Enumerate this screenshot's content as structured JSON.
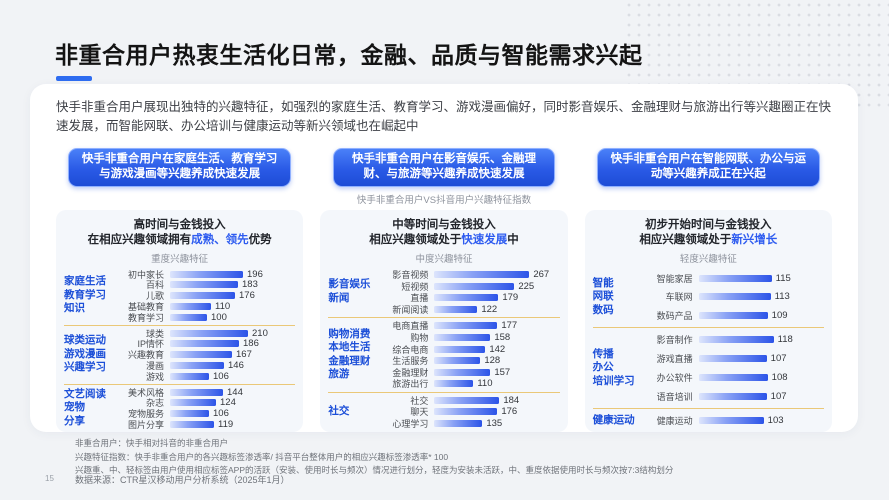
{
  "slide": {
    "title": "非重合用户热衷生活化日常，金融、品质与智能需求兴起",
    "description": "快手非重合用户展现出独特的兴趣特征，如强烈的家庭生活、教育学习、游戏漫画偏好，同时影音娱乐、金融理财与旅游出行等兴趣圈正在快速发展，而智能网联、办公培训与健康运动等新兴领域也在崛起中",
    "vs_caption": "快手非重合用户VS抖音用户兴趣特征指数",
    "page_number": "15",
    "source": "数据来源：CTR星汉移动用户分析系统（2025年1月）",
    "footnotes": [
      "非重合用户：快手相对抖音的非重合用户",
      "兴趣特征指数：快手非重合用户的各兴趣标签渗透率/ 抖音平台整体用户的相应兴趣标签渗透率* 100",
      "兴趣重、中、轻标签由用户使用相应标签APP的活跃（安装、使用时长与频次）情况进行划分，轻度为安装未活跃，中、重度依据使用时长与频次按7:3结构划分"
    ],
    "accent_color": "#2E6CF0",
    "bar_color": "#2C54E8",
    "highlight_color": "#2E5CF0",
    "divider_color": "#EAC878"
  },
  "columns": [
    {
      "header": "快手非重合用户在家庭生活、教育学习与游戏漫画等兴趣养成快速发展"
    },
    {
      "header": "快手非重合用户在影音娱乐、金融理财、与旅游等兴趣养成快速发展"
    },
    {
      "header": "快手非重合用户在智能网联、办公与运动等兴趣养成正在兴起"
    }
  ],
  "chart_data": [
    {
      "type": "bar",
      "orientation": "horizontal",
      "takeaway_title": "高时间与金钱投入",
      "takeaway_prefix": "在相应兴趣领域拥有",
      "takeaway_highlight": "成熟、领先",
      "takeaway_suffix": "优势",
      "title": "重度兴趣特征",
      "max_value": 210,
      "xlim": [
        0,
        220
      ],
      "grid": false,
      "legend": false,
      "groups": [
        {
          "label_lines": [
            "家庭生活",
            "教育学习",
            "知识"
          ],
          "categories": [
            "初中家长",
            "百科",
            "儿歌",
            "基础教育",
            "教育学习"
          ],
          "values": [
            196,
            183,
            176,
            110,
            100
          ]
        },
        {
          "label_lines": [
            "球类运动",
            "游戏漫画",
            "兴趣学习"
          ],
          "categories": [
            "球类",
            "IP情怀",
            "兴趣教育",
            "漫画",
            "游戏"
          ],
          "values": [
            210,
            186,
            167,
            146,
            106
          ]
        },
        {
          "label_lines": [
            "文艺阅读",
            "宠物",
            "分享"
          ],
          "categories": [
            "美术风格",
            "杂志",
            "宠物服务",
            "图片分享"
          ],
          "values": [
            144,
            124,
            106,
            119
          ]
        }
      ]
    },
    {
      "type": "bar",
      "orientation": "horizontal",
      "takeaway_title": "中等时间与金钱投入",
      "takeaway_prefix": "相应兴趣领域处于",
      "takeaway_highlight": "快速发展",
      "takeaway_suffix": "中",
      "title": "中度兴趣特征",
      "max_value": 267,
      "xlim": [
        0,
        280
      ],
      "grid": false,
      "legend": false,
      "groups": [
        {
          "label_lines": [
            "影音娱乐",
            "新闻"
          ],
          "categories": [
            "影音视频",
            "短视频",
            "直播",
            "新闻阅读"
          ],
          "values": [
            267,
            225,
            179,
            122
          ]
        },
        {
          "label_lines": [
            "购物消费",
            "本地生活",
            "金融理财",
            "旅游"
          ],
          "categories": [
            "电商直播",
            "购物",
            "综合电商",
            "生活服务",
            "金融理财",
            "旅游出行"
          ],
          "values": [
            177,
            158,
            142,
            128,
            157,
            110
          ]
        },
        {
          "label_lines": [
            "社交"
          ],
          "categories": [
            "社交",
            "聊天",
            "心理学习"
          ],
          "values": [
            184,
            176,
            135
          ]
        }
      ]
    },
    {
      "type": "bar",
      "orientation": "horizontal",
      "takeaway_title": "初步开始时间与金钱投入",
      "takeaway_prefix": "相应兴趣领域处于",
      "takeaway_highlight": "新兴增长",
      "takeaway_suffix": "",
      "title": "轻度兴趣特征",
      "max_value": 118,
      "xlim": [
        0,
        125
      ],
      "grid": false,
      "legend": false,
      "groups": [
        {
          "label_lines": [
            "智能",
            "网联",
            "数码"
          ],
          "categories": [
            "智能家居",
            "车联网",
            "数码产品"
          ],
          "values": [
            115,
            113,
            109
          ]
        },
        {
          "label_lines": [
            "传播",
            "办公",
            "培训学习"
          ],
          "categories": [
            "影音制作",
            "游戏直播",
            "办公软件",
            "语音培训"
          ],
          "values": [
            118,
            107,
            108,
            107
          ]
        },
        {
          "label_lines": [
            "健康运动"
          ],
          "categories": [
            "健康运动"
          ],
          "values": [
            103
          ]
        }
      ]
    }
  ]
}
